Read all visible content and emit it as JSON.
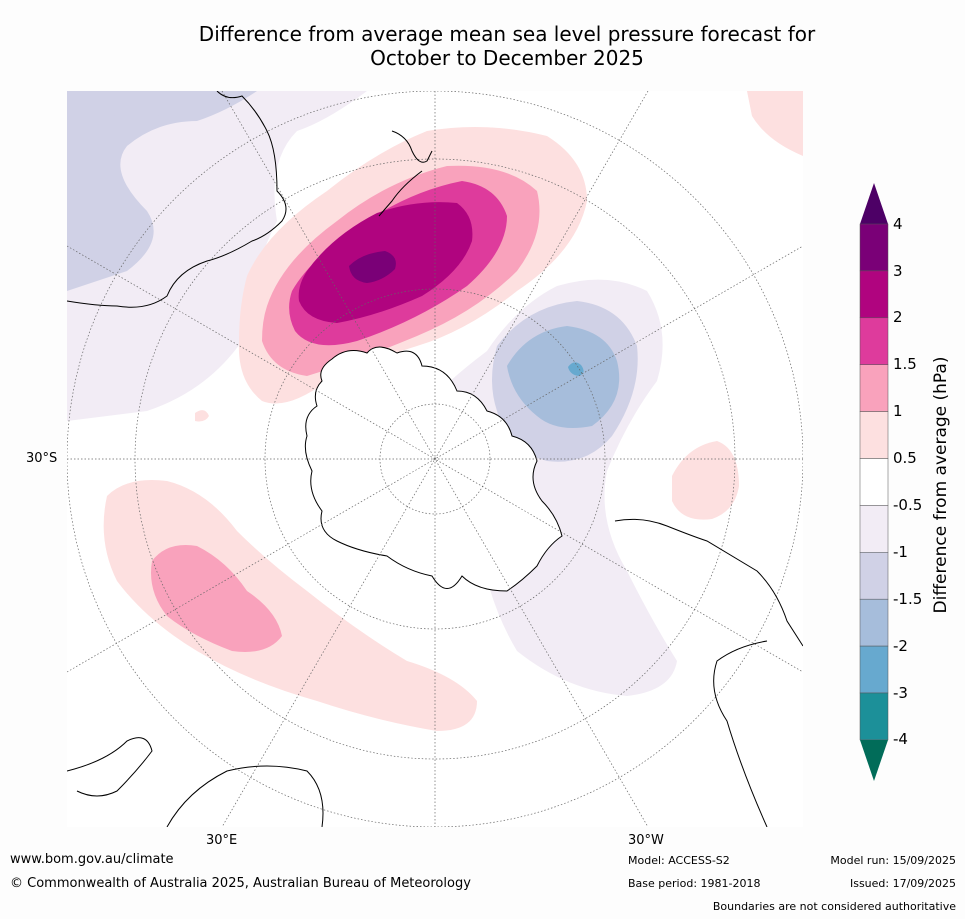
{
  "header": {
    "title_line1": "Difference from average mean sea level pressure forecast for",
    "title_line2": "October to December 2025"
  },
  "map": {
    "projection": "South polar stereographic",
    "labels": {
      "lat": "30°S",
      "lon_east": "30°E",
      "lon_west": "30°W"
    }
  },
  "colorbar": {
    "title": "Difference from average (hPa)",
    "ticks": [
      "4",
      "3",
      "2",
      "1.5",
      "1",
      "0.5",
      "-0.5",
      "-1",
      "-1.5",
      "-2",
      "-3",
      "-4"
    ],
    "colors": {
      "extend_top": "#4d0066",
      "3_to_4": "#7a0077",
      "2_to_3": "#b0047f",
      "1.5_to_2": "#de3b9c",
      "1_to_1.5": "#f9a2bc",
      "0.5_to_1": "#fde0e0",
      "neutral": "#ffffff",
      "-1_to_-0.5": "#f2ecf5",
      "-1.5_to_-1": "#d0d1e6",
      "-2_to_-1.5": "#a6bddb",
      "-3_to_-2": "#67a9cf",
      "-4_to_-3": "#1c9099",
      "extend_bottom": "#016c59"
    }
  },
  "footer": {
    "url": "www.bom.gov.au/climate",
    "copyright": "© Commonwealth of Australia 2025, Australian Bureau of Meteorology",
    "model": "Model: ACCESS-S2",
    "base_period": "Base period: 1981-2018",
    "model_run": "Model run: 15/09/2025",
    "issued": "Issued: 17/09/2025",
    "disclaimer": "Boundaries are not considered authoritative"
  }
}
